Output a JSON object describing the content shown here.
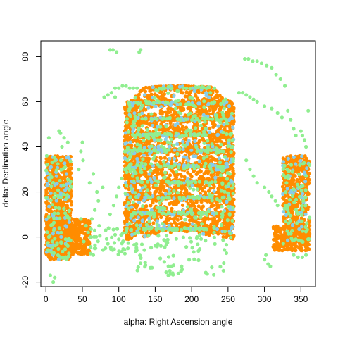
{
  "chart_data": {
    "type": "scatter",
    "title": "",
    "xlabel": "alpha: Right Ascension angle",
    "ylabel": "delta: Declination angle",
    "xlim": [
      -7,
      370
    ],
    "ylim": [
      -22,
      87
    ],
    "xticks": [
      0,
      50,
      100,
      150,
      200,
      250,
      300,
      350
    ],
    "yticks": [
      -20,
      0,
      20,
      40,
      60,
      80
    ],
    "grid": false,
    "legend": "none",
    "colors": {
      "orange": "#ff8c00",
      "green": "#90ee90",
      "blue": "#87ceeb"
    },
    "series": [
      {
        "color": "#ff8c00",
        "regions": [
          {
            "kind": "rect",
            "x": [
              0,
              35
            ],
            "y": [
              -10,
              36
            ],
            "n": 700
          },
          {
            "kind": "rect",
            "x": [
              0,
              60
            ],
            "y": [
              -8,
              8
            ],
            "n": 500
          },
          {
            "kind": "dome",
            "cx": 183,
            "rx": 75,
            "y": [
              -1,
              69
            ],
            "rise": 12,
            "n": 4200
          },
          {
            "kind": "rect",
            "x": [
              325,
              362
            ],
            "y": [
              -3,
              36
            ],
            "n": 520
          },
          {
            "kind": "rect",
            "x": [
              312,
              362
            ],
            "y": [
              -6,
              5
            ],
            "n": 200
          }
        ]
      },
      {
        "color": "#87ceeb",
        "regions": [
          {
            "kind": "rect",
            "x": [
              0,
              35
            ],
            "y": [
              -10,
              36
            ],
            "n": 60
          },
          {
            "kind": "dome",
            "cx": 183,
            "rx": 75,
            "y": [
              -1,
              69
            ],
            "rise": 12,
            "n": 380
          },
          {
            "kind": "rect",
            "x": [
              325,
              362
            ],
            "y": [
              -3,
              36
            ],
            "n": 40
          }
        ]
      },
      {
        "color": "#90ee90",
        "regions": [
          {
            "kind": "rect",
            "x": [
              0,
              35
            ],
            "y": [
              -10,
              36
            ],
            "n": 90
          },
          {
            "kind": "dome",
            "cx": 183,
            "rx": 75,
            "y": [
              -1,
              69
            ],
            "rise": 12,
            "n": 520
          },
          {
            "kind": "rect",
            "x": [
              325,
              362
            ],
            "y": [
              -3,
              36
            ],
            "n": 70
          },
          {
            "kind": "rect",
            "x": [
              120,
              248
            ],
            "y": [
              -17,
              4
            ],
            "n": 80
          },
          {
            "kind": "rect",
            "x": [
              60,
              120
            ],
            "y": [
              -8,
              4
            ],
            "n": 40
          }
        ],
        "points": [
          [
            88,
            83
          ],
          [
            92,
            83
          ],
          [
            97,
            82
          ],
          [
            128,
            82
          ],
          [
            130,
            83
          ],
          [
            273,
            79
          ],
          [
            278,
            79
          ],
          [
            284,
            78
          ],
          [
            290,
            78
          ],
          [
            296,
            77
          ],
          [
            303,
            76
          ],
          [
            310,
            75
          ],
          [
            316,
            72
          ],
          [
            322,
            70
          ],
          [
            328,
            67
          ],
          [
            332,
            56
          ],
          [
            336,
            52
          ],
          [
            340,
            48
          ],
          [
            343,
            45
          ],
          [
            95,
            66
          ],
          [
            100,
            66
          ],
          [
            105,
            67
          ],
          [
            110,
            67
          ],
          [
            115,
            66
          ],
          [
            120,
            66
          ],
          [
            125,
            66
          ],
          [
            80,
            62
          ],
          [
            85,
            63
          ],
          [
            90,
            64
          ],
          [
            95,
            62
          ],
          [
            265,
            64
          ],
          [
            270,
            64
          ],
          [
            275,
            63
          ],
          [
            280,
            62
          ],
          [
            285,
            61
          ],
          [
            290,
            60
          ],
          [
            300,
            58
          ],
          [
            310,
            57
          ],
          [
            318,
            55
          ],
          [
            324,
            53
          ],
          [
            360,
            56
          ],
          [
            275,
            34
          ],
          [
            280,
            30
          ],
          [
            285,
            27
          ],
          [
            290,
            24
          ],
          [
            300,
            22
          ],
          [
            306,
            20
          ],
          [
            310,
            18
          ],
          [
            315,
            16
          ],
          [
            318,
            14
          ],
          [
            350,
            47
          ],
          [
            352,
            45
          ],
          [
            355,
            43
          ],
          [
            357,
            40
          ],
          [
            4,
            44
          ],
          [
            18,
            47
          ],
          [
            20,
            46
          ],
          [
            25,
            44
          ],
          [
            22,
            40
          ],
          [
            30,
            42
          ],
          [
            50,
            42
          ],
          [
            48,
            38
          ],
          [
            51,
            34
          ],
          [
            45,
            30
          ],
          [
            82,
            3
          ],
          [
            85,
            -3
          ],
          [
            95,
            1
          ],
          [
            110,
            2
          ],
          [
            100,
            -1
          ],
          [
            88,
            10
          ],
          [
            93,
            14
          ],
          [
            97,
            18
          ],
          [
            100,
            22
          ],
          [
            104,
            26
          ],
          [
            108,
            30
          ],
          [
            112,
            34
          ],
          [
            60,
            24
          ],
          [
            65,
            28
          ],
          [
            70,
            20
          ],
          [
            78,
            22
          ],
          [
            72,
            16
          ],
          [
            63,
            8
          ],
          [
            67,
            12
          ],
          [
            73,
            5
          ],
          [
            68,
            -5
          ],
          [
            65,
            -8
          ],
          [
            55,
            5
          ],
          [
            58,
            2
          ],
          [
            52,
            -2
          ],
          [
            48,
            8
          ],
          [
            168,
            -17
          ],
          [
            170,
            -15
          ],
          [
            172,
            -13
          ],
          [
            174,
            -16
          ],
          [
            300,
            -10
          ],
          [
            305,
            -12
          ],
          [
            308,
            -13
          ],
          [
            302,
            -8
          ],
          [
            340,
            -8
          ],
          [
            346,
            -9
          ],
          [
            352,
            -9
          ],
          [
            357,
            -8
          ],
          [
            6,
            -17
          ],
          [
            10,
            -20
          ],
          [
            12,
            -18
          ]
        ]
      }
    ]
  }
}
